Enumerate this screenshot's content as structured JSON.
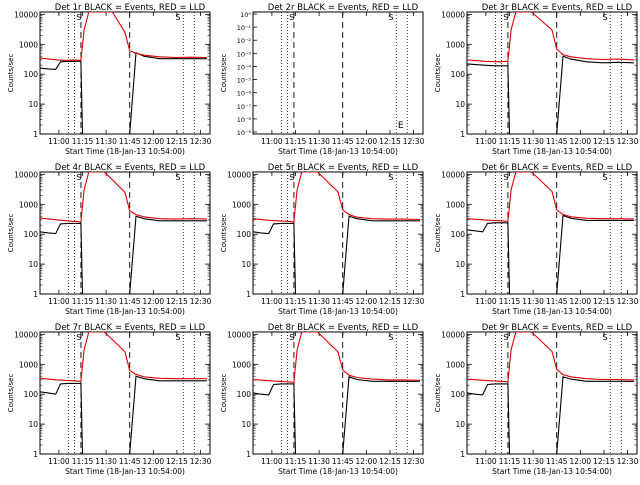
{
  "figure": {
    "start_time_label": "Start Time (18-Jan-13 10:54:00)",
    "x_tick_labels": [
      "11:00",
      "11:15",
      "11:30",
      "11:45",
      "12:00",
      "12:15",
      "12:30"
    ],
    "y_tick_labels": [
      "1",
      "10",
      "100",
      "1000",
      "10000"
    ],
    "y_tick_labels_det2": [
      "10⁻¹",
      "10⁰",
      "10⁻⁹",
      "10⁻⁸",
      "10⁻⁷",
      "10⁻⁶",
      "10⁻⁵",
      "10⁻⁴",
      "10⁻³",
      "10⁻²",
      "10⁻¹",
      "10⁰"
    ],
    "ylabel": "Counts/sec",
    "series_colors": {
      "events": "#000000",
      "lld": "#e00000"
    },
    "flags": [
      "S",
      "S",
      "E"
    ]
  },
  "chart_data": [
    {
      "panel": 1,
      "type": "line",
      "title": "Det 1r BLACK = Events, RED = LLD",
      "ylog": true,
      "ylim": [
        1,
        12000
      ],
      "xlim_minutes": [
        -6,
        102
      ],
      "x_unit": "minutes since 10:54:00",
      "vlines_dotted_min": [
        12,
        16,
        85,
        92
      ],
      "vlines_dashed_min": [
        20,
        51
      ],
      "series": [
        {
          "key": "events",
          "x": [
            -6,
            -1,
            4,
            7,
            12,
            16,
            20,
            21,
            30,
            40,
            51,
            55,
            60,
            70,
            80,
            90,
            100
          ],
          "y": [
            160,
            150,
            145,
            260,
            270,
            270,
            270,
            1,
            1,
            1,
            1,
            520,
            400,
            330,
            330,
            330,
            330
          ]
        },
        {
          "key": "lld",
          "x": [
            -6,
            0,
            5,
            10,
            15,
            20,
            22,
            25,
            30,
            40,
            48,
            51,
            55,
            60,
            70,
            80,
            90,
            100
          ],
          "y": [
            350,
            320,
            300,
            290,
            300,
            290,
            3000,
            12000,
            12000,
            12000,
            2500,
            600,
            500,
            430,
            380,
            360,
            370,
            360
          ]
        }
      ]
    },
    {
      "panel": 2,
      "type": "line",
      "title": "Det 2r BLACK = Events, RED = LLD",
      "ylog": true,
      "note": "empty panel, no data",
      "vlines_dotted_min": [
        12,
        16,
        85,
        92
      ],
      "vlines_dashed_min": [
        20,
        51
      ],
      "series": []
    },
    {
      "panel": 3,
      "type": "line",
      "title": "Det 3r BLACK = Events, RED = LLD",
      "ylog": true,
      "ylim": [
        1,
        12000
      ],
      "series": [
        {
          "key": "events",
          "x": [
            -6,
            5,
            12,
            16,
            20,
            21,
            30,
            51,
            55,
            60,
            70,
            80,
            90,
            100
          ],
          "y": [
            220,
            200,
            190,
            190,
            190,
            1,
            1,
            1,
            400,
            320,
            260,
            240,
            250,
            240
          ]
        },
        {
          "key": "lld",
          "x": [
            -6,
            5,
            15,
            20,
            22,
            25,
            35,
            48,
            51,
            55,
            60,
            70,
            80,
            90,
            100
          ],
          "y": [
            300,
            270,
            260,
            270,
            3000,
            12000,
            12000,
            3000,
            700,
            450,
            380,
            330,
            310,
            320,
            300
          ]
        }
      ]
    },
    {
      "panel": 4,
      "type": "line",
      "title": "Det 4r BLACK = Events, RED = LLD",
      "ylog": true,
      "ylim": [
        1,
        12000
      ],
      "series": [
        {
          "key": "events",
          "x": [
            -6,
            -1,
            4,
            7,
            12,
            16,
            20,
            21,
            30,
            51,
            55,
            60,
            70,
            80,
            90,
            100
          ],
          "y": [
            120,
            110,
            105,
            220,
            230,
            230,
            230,
            1,
            1,
            1,
            400,
            330,
            280,
            280,
            280,
            280
          ]
        },
        {
          "key": "lld",
          "x": [
            -6,
            5,
            15,
            20,
            22,
            25,
            35,
            48,
            51,
            55,
            60,
            70,
            80,
            90,
            100
          ],
          "y": [
            350,
            300,
            270,
            260,
            3000,
            12000,
            12000,
            2500,
            600,
            450,
            380,
            330,
            320,
            330,
            320
          ]
        }
      ]
    },
    {
      "panel": 5,
      "type": "line",
      "title": "Det 5r BLACK = Events, RED = LLD",
      "ylog": true,
      "ylim": [
        1,
        12000
      ],
      "series": [
        {
          "key": "events",
          "x": [
            -6,
            -1,
            4,
            7,
            12,
            16,
            20,
            21,
            30,
            51,
            55,
            60,
            70,
            80,
            90,
            100
          ],
          "y": [
            120,
            110,
            105,
            220,
            230,
            230,
            230,
            1,
            1,
            1,
            400,
            330,
            280,
            280,
            280,
            280
          ]
        },
        {
          "key": "lld",
          "x": [
            -6,
            5,
            15,
            20,
            22,
            25,
            35,
            48,
            51,
            55,
            60,
            70,
            80,
            90,
            100
          ],
          "y": [
            330,
            290,
            270,
            260,
            3000,
            12000,
            12000,
            2600,
            650,
            450,
            370,
            330,
            320,
            320,
            310
          ]
        }
      ]
    },
    {
      "panel": 6,
      "type": "line",
      "title": "Det 6r BLACK = Events, RED = LLD",
      "ylog": true,
      "ylim": [
        1,
        12000
      ],
      "series": [
        {
          "key": "events",
          "x": [
            -6,
            -1,
            4,
            7,
            12,
            16,
            20,
            21,
            30,
            51,
            55,
            60,
            70,
            80,
            90,
            100
          ],
          "y": [
            140,
            130,
            120,
            230,
            240,
            240,
            240,
            1,
            1,
            1,
            420,
            340,
            290,
            290,
            290,
            290
          ]
        },
        {
          "key": "lld",
          "x": [
            -6,
            5,
            15,
            20,
            22,
            25,
            35,
            48,
            51,
            55,
            60,
            70,
            80,
            90,
            100
          ],
          "y": [
            330,
            300,
            280,
            270,
            3000,
            12000,
            12000,
            2700,
            650,
            460,
            380,
            340,
            330,
            330,
            320
          ]
        }
      ]
    },
    {
      "panel": 7,
      "type": "line",
      "title": "Det 7r BLACK = Events, RED = LLD",
      "ylog": true,
      "ylim": [
        1,
        12000
      ],
      "series": [
        {
          "key": "events",
          "x": [
            -6,
            -1,
            4,
            7,
            12,
            16,
            20,
            21,
            30,
            51,
            55,
            60,
            70,
            80,
            90,
            100
          ],
          "y": [
            120,
            110,
            100,
            220,
            230,
            230,
            230,
            1,
            1,
            1,
            400,
            330,
            280,
            280,
            280,
            280
          ]
        },
        {
          "key": "lld",
          "x": [
            -6,
            5,
            15,
            20,
            22,
            25,
            35,
            48,
            51,
            55,
            60,
            70,
            80,
            90,
            100
          ],
          "y": [
            340,
            300,
            280,
            270,
            3000,
            12000,
            12000,
            2600,
            620,
            460,
            380,
            340,
            330,
            330,
            330
          ]
        }
      ]
    },
    {
      "panel": 8,
      "type": "line",
      "title": "Det 8r BLACK = Events, RED = LLD",
      "ylog": true,
      "ylim": [
        1,
        12000
      ],
      "series": [
        {
          "key": "events",
          "x": [
            -6,
            -1,
            4,
            7,
            12,
            16,
            20,
            21,
            30,
            51,
            55,
            60,
            70,
            80,
            90,
            100
          ],
          "y": [
            110,
            100,
            95,
            210,
            220,
            220,
            220,
            1,
            1,
            1,
            380,
            310,
            270,
            270,
            270,
            270
          ]
        },
        {
          "key": "lld",
          "x": [
            -6,
            5,
            15,
            20,
            22,
            25,
            35,
            48,
            51,
            55,
            60,
            70,
            80,
            90,
            100
          ],
          "y": [
            310,
            280,
            260,
            250,
            3000,
            12000,
            12000,
            2600,
            650,
            430,
            360,
            320,
            300,
            300,
            290
          ]
        }
      ]
    },
    {
      "panel": 9,
      "type": "line",
      "title": "Det 9r BLACK = Events, RED = LLD",
      "ylog": true,
      "ylim": [
        1,
        12000
      ],
      "series": [
        {
          "key": "events",
          "x": [
            -6,
            -1,
            4,
            7,
            12,
            16,
            20,
            21,
            30,
            51,
            55,
            60,
            70,
            80,
            90,
            100
          ],
          "y": [
            110,
            100,
            95,
            210,
            220,
            220,
            220,
            1,
            1,
            1,
            380,
            320,
            270,
            270,
            270,
            270
          ]
        },
        {
          "key": "lld",
          "x": [
            -6,
            5,
            15,
            20,
            22,
            25,
            35,
            48,
            51,
            55,
            60,
            70,
            80,
            90,
            100
          ],
          "y": [
            320,
            290,
            270,
            260,
            3000,
            12000,
            12000,
            2700,
            680,
            450,
            380,
            330,
            310,
            310,
            300
          ]
        }
      ]
    }
  ]
}
